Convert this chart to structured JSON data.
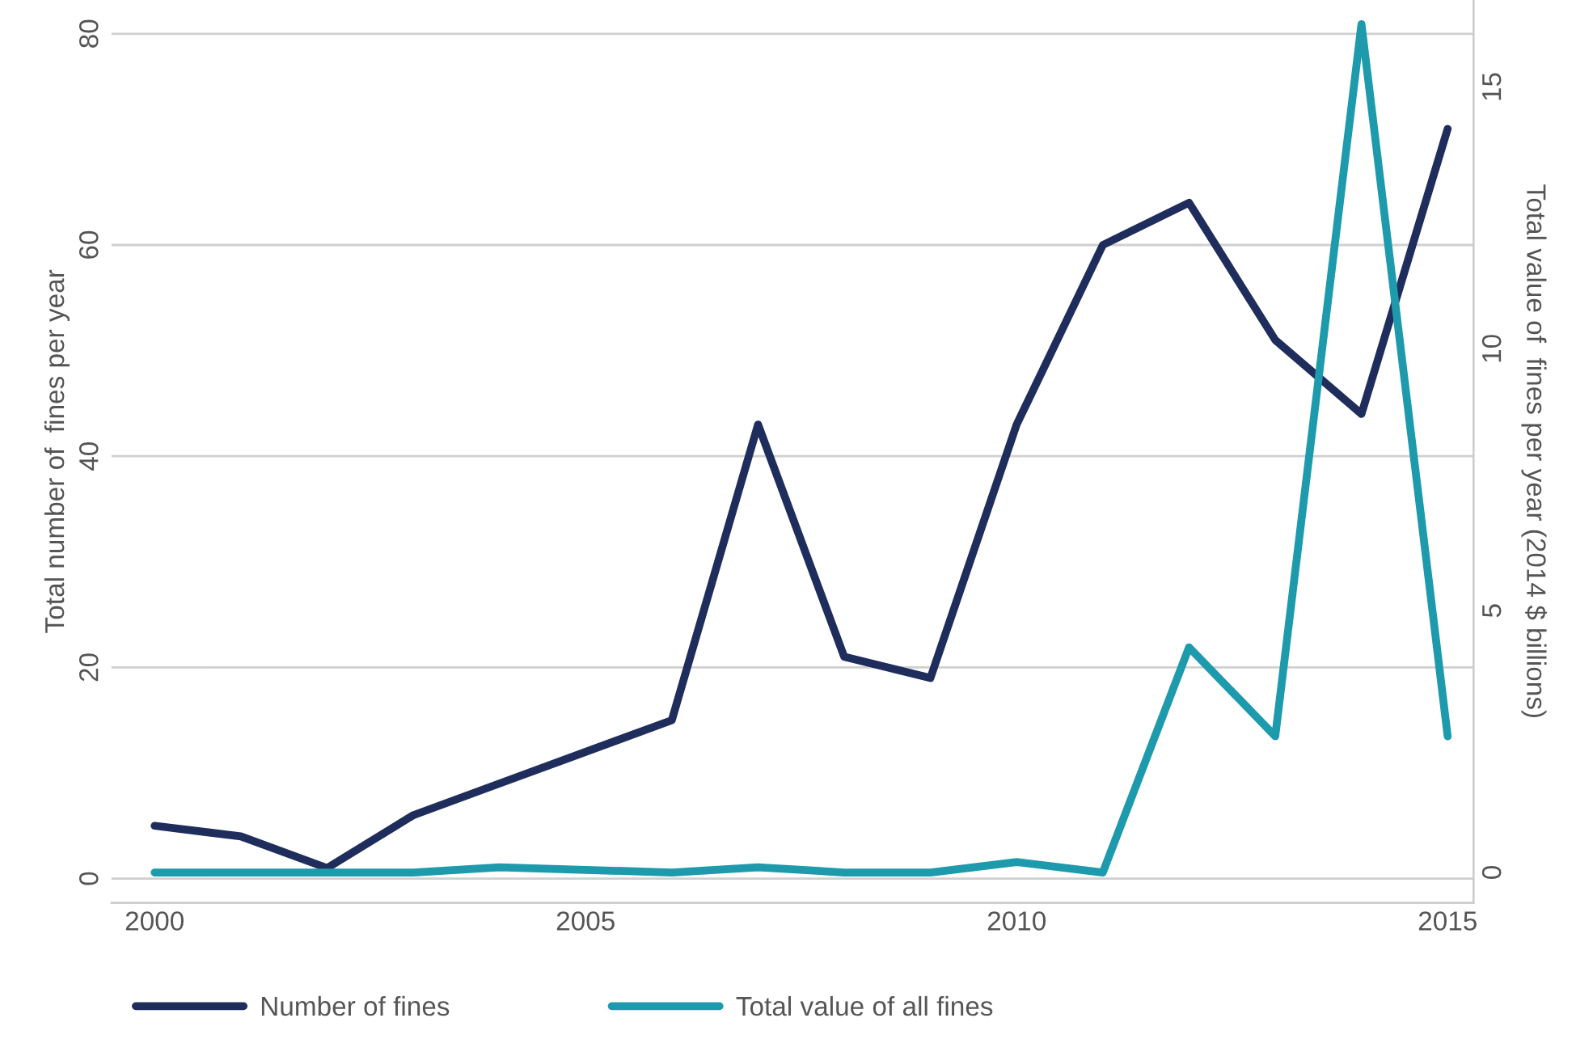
{
  "chart_data": {
    "type": "line",
    "x": [
      2000,
      2001,
      2002,
      2003,
      2004,
      2005,
      2006,
      2007,
      2008,
      2009,
      2010,
      2011,
      2012,
      2013,
      2014,
      2015
    ],
    "series": [
      {
        "name": "Number of fines",
        "color": "#1f2d5c",
        "values": [
          5,
          4,
          1,
          6,
          9,
          12,
          15,
          43,
          21,
          19,
          43,
          60,
          64,
          51,
          44,
          71
        ]
      },
      {
        "name": "Total value of all fines",
        "color": "#1e9aad",
        "axis": "y2",
        "values": [
          0,
          0,
          0,
          0,
          0.1,
          0.05,
          0,
          0.1,
          0,
          0,
          0.2,
          0,
          4.3,
          2.6,
          16.2,
          2.6
        ]
      }
    ],
    "ylabel": "Total number of  fines per year",
    "y2label": "Total value of  fines per year (2014 $ billions)",
    "xlim": [
      1999.5,
      2015.3
    ],
    "xticks": [
      2000,
      2005,
      2010,
      2015
    ],
    "ylim": [
      -2.3,
      83.2
    ],
    "yticks": [
      0,
      20,
      40,
      60,
      80
    ],
    "y2lim": [
      -0.58,
      16.66
    ],
    "y2ticks": [
      0,
      5,
      10,
      15
    ],
    "grid": "y",
    "legend": "bottom",
    "line_style": "solid",
    "marker": "none"
  }
}
